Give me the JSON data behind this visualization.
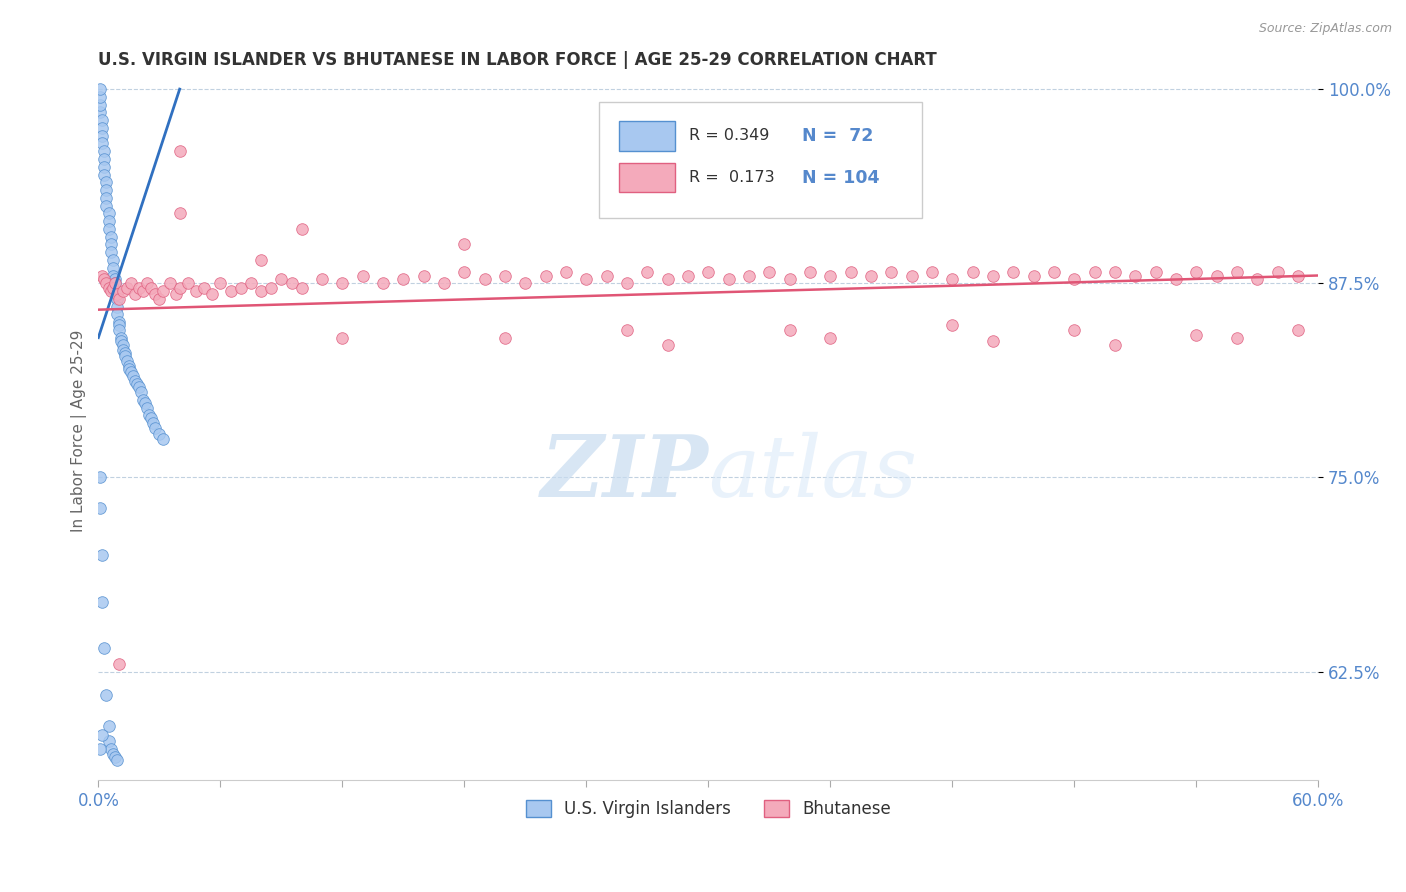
{
  "title": "U.S. VIRGIN ISLANDER VS BHUTANESE IN LABOR FORCE | AGE 25-29 CORRELATION CHART",
  "source_text": "Source: ZipAtlas.com",
  "ylabel": "In Labor Force | Age 25-29",
  "watermark_zip": "ZIP",
  "watermark_atlas": "atlas",
  "xlim": [
    0.0,
    0.6
  ],
  "ylim": [
    0.555,
    1.005
  ],
  "xticks": [
    0.0,
    0.06,
    0.12,
    0.18,
    0.24,
    0.3,
    0.36,
    0.42,
    0.48,
    0.54,
    0.6
  ],
  "xticklabels_show": [
    "0.0%",
    "60.0%"
  ],
  "xticklabels_show_pos": [
    0.0,
    0.6
  ],
  "yticks": [
    0.625,
    0.75,
    0.875,
    1.0
  ],
  "yticklabels": [
    "62.5%",
    "75.0%",
    "87.5%",
    "100.0%"
  ],
  "blue_color": "#A8C8F0",
  "pink_color": "#F4AABB",
  "blue_edge_color": "#5590D0",
  "pink_edge_color": "#E06080",
  "blue_line_color": "#3070C0",
  "pink_line_color": "#E05575",
  "tick_color": "#5588CC",
  "legend_R1": "0.349",
  "legend_N1": "72",
  "legend_R2": "0.173",
  "legend_N2": "104",
  "legend_label1": "U.S. Virgin Islanders",
  "legend_label2": "Bhutanese",
  "blue_scatter_x": [
    0.001,
    0.001,
    0.001,
    0.001,
    0.002,
    0.002,
    0.002,
    0.002,
    0.003,
    0.003,
    0.003,
    0.003,
    0.004,
    0.004,
    0.004,
    0.004,
    0.005,
    0.005,
    0.005,
    0.006,
    0.006,
    0.006,
    0.007,
    0.007,
    0.007,
    0.008,
    0.008,
    0.008,
    0.009,
    0.009,
    0.009,
    0.01,
    0.01,
    0.01,
    0.011,
    0.011,
    0.012,
    0.012,
    0.013,
    0.013,
    0.014,
    0.015,
    0.015,
    0.016,
    0.017,
    0.018,
    0.019,
    0.02,
    0.021,
    0.022,
    0.023,
    0.024,
    0.025,
    0.026,
    0.027,
    0.028,
    0.03,
    0.032,
    0.001,
    0.001,
    0.002,
    0.002,
    0.003,
    0.004,
    0.005,
    0.005,
    0.006,
    0.007,
    0.008,
    0.009,
    0.001,
    0.002
  ],
  "blue_scatter_y": [
    0.985,
    0.99,
    0.995,
    1.0,
    0.98,
    0.975,
    0.97,
    0.965,
    0.96,
    0.955,
    0.95,
    0.945,
    0.94,
    0.935,
    0.93,
    0.925,
    0.92,
    0.915,
    0.91,
    0.905,
    0.9,
    0.895,
    0.89,
    0.885,
    0.88,
    0.878,
    0.875,
    0.87,
    0.865,
    0.86,
    0.855,
    0.85,
    0.848,
    0.845,
    0.84,
    0.838,
    0.835,
    0.832,
    0.83,
    0.828,
    0.825,
    0.822,
    0.82,
    0.818,
    0.815,
    0.812,
    0.81,
    0.808,
    0.805,
    0.8,
    0.798,
    0.795,
    0.79,
    0.788,
    0.785,
    0.782,
    0.778,
    0.775,
    0.75,
    0.73,
    0.7,
    0.67,
    0.64,
    0.61,
    0.59,
    0.58,
    0.575,
    0.572,
    0.57,
    0.568,
    0.575,
    0.584
  ],
  "pink_scatter_x": [
    0.002,
    0.003,
    0.004,
    0.005,
    0.006,
    0.007,
    0.008,
    0.009,
    0.01,
    0.012,
    0.014,
    0.016,
    0.018,
    0.02,
    0.022,
    0.024,
    0.026,
    0.028,
    0.03,
    0.032,
    0.035,
    0.038,
    0.04,
    0.044,
    0.048,
    0.052,
    0.056,
    0.06,
    0.065,
    0.07,
    0.075,
    0.08,
    0.085,
    0.09,
    0.095,
    0.1,
    0.11,
    0.12,
    0.13,
    0.14,
    0.15,
    0.16,
    0.17,
    0.18,
    0.19,
    0.2,
    0.21,
    0.22,
    0.23,
    0.24,
    0.25,
    0.26,
    0.27,
    0.28,
    0.29,
    0.3,
    0.31,
    0.32,
    0.33,
    0.34,
    0.35,
    0.36,
    0.37,
    0.38,
    0.39,
    0.4,
    0.41,
    0.42,
    0.43,
    0.44,
    0.45,
    0.46,
    0.47,
    0.48,
    0.49,
    0.5,
    0.51,
    0.52,
    0.53,
    0.54,
    0.55,
    0.56,
    0.57,
    0.58,
    0.59,
    0.04,
    0.08,
    0.12,
    0.2,
    0.28,
    0.36,
    0.44,
    0.5,
    0.56,
    0.04,
    0.1,
    0.18,
    0.26,
    0.34,
    0.42,
    0.48,
    0.54,
    0.59,
    0.01
  ],
  "pink_scatter_y": [
    0.88,
    0.878,
    0.875,
    0.872,
    0.87,
    0.872,
    0.875,
    0.868,
    0.865,
    0.87,
    0.872,
    0.875,
    0.868,
    0.872,
    0.87,
    0.875,
    0.872,
    0.868,
    0.865,
    0.87,
    0.875,
    0.868,
    0.872,
    0.875,
    0.87,
    0.872,
    0.868,
    0.875,
    0.87,
    0.872,
    0.875,
    0.87,
    0.872,
    0.878,
    0.875,
    0.872,
    0.878,
    0.875,
    0.88,
    0.875,
    0.878,
    0.88,
    0.875,
    0.882,
    0.878,
    0.88,
    0.875,
    0.88,
    0.882,
    0.878,
    0.88,
    0.875,
    0.882,
    0.878,
    0.88,
    0.882,
    0.878,
    0.88,
    0.882,
    0.878,
    0.882,
    0.88,
    0.882,
    0.88,
    0.882,
    0.88,
    0.882,
    0.878,
    0.882,
    0.88,
    0.882,
    0.88,
    0.882,
    0.878,
    0.882,
    0.882,
    0.88,
    0.882,
    0.878,
    0.882,
    0.88,
    0.882,
    0.878,
    0.882,
    0.88,
    0.92,
    0.89,
    0.84,
    0.84,
    0.835,
    0.84,
    0.838,
    0.835,
    0.84,
    0.96,
    0.91,
    0.9,
    0.845,
    0.845,
    0.848,
    0.845,
    0.842,
    0.845,
    0.63
  ]
}
